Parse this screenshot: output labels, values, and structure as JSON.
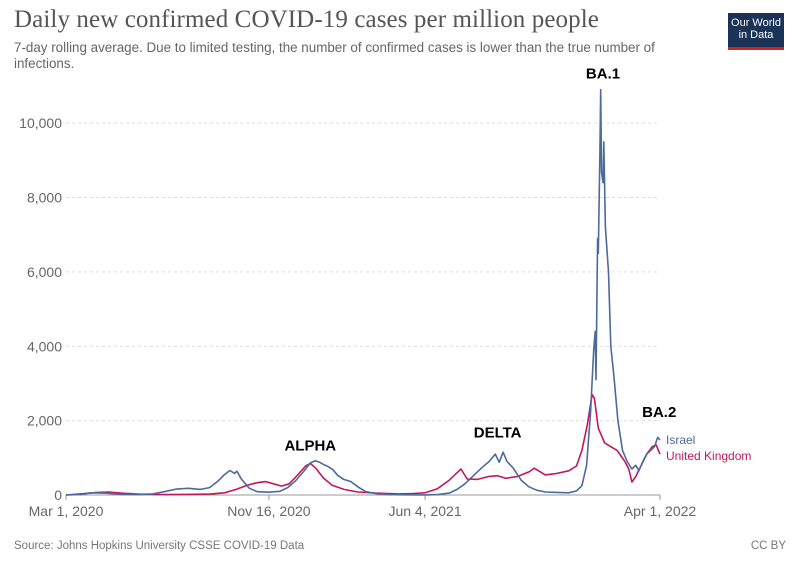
{
  "header": {
    "title": "Daily new confirmed COVID-19 cases per million people",
    "subtitle": "7-day rolling average. Due to limited testing, the number of confirmed cases is lower than the true number of infections."
  },
  "logo": {
    "line1": "Our World",
    "line2": "in Data",
    "bg": "#1a3357",
    "accent": "#ce261e"
  },
  "footer": {
    "source": "Source: Johns Hopkins University CSSE COVID-19 Data",
    "license": "CC BY"
  },
  "chart_data": {
    "type": "line",
    "title": "Daily new confirmed COVID-19 cases per million people",
    "xlabel": "",
    "ylabel": "",
    "xlim": [
      "2020-03-01",
      "2022-04-01"
    ],
    "ylim": [
      0,
      11000
    ],
    "grid": "horizontal dashed",
    "legend": "inline labels at line ends (right)",
    "x_ticks": [
      "Mar 1, 2020",
      "Nov 16, 2020",
      "Jun 4, 2021",
      "Apr 1, 2022"
    ],
    "y_ticks": [
      {
        "value": 0,
        "label": "0"
      },
      {
        "value": 2000,
        "label": "2,000"
      },
      {
        "value": 4000,
        "label": "4,000"
      },
      {
        "value": 6000,
        "label": "6,000"
      },
      {
        "value": 8000,
        "label": "8,000"
      },
      {
        "value": 10000,
        "label": "10,000"
      }
    ],
    "annotations": [
      {
        "text": "ALPHA",
        "x": "2021-01-08",
        "y": 1200
      },
      {
        "text": "DELTA",
        "x": "2021-09-05",
        "y": 1550
      },
      {
        "text": "BA.1",
        "x": "2022-01-18",
        "y": 11200
      },
      {
        "text": "BA.2",
        "x": "2022-03-31",
        "y": 2100
      }
    ],
    "series": [
      {
        "name": "Israel",
        "color": "#4c6a9c",
        "points": [
          [
            "2020-03-01",
            0
          ],
          [
            "2020-03-20",
            15
          ],
          [
            "2020-04-02",
            60
          ],
          [
            "2020-04-20",
            50
          ],
          [
            "2020-05-10",
            20
          ],
          [
            "2020-06-01",
            10
          ],
          [
            "2020-06-20",
            30
          ],
          [
            "2020-07-05",
            90
          ],
          [
            "2020-07-20",
            160
          ],
          [
            "2020-08-05",
            180
          ],
          [
            "2020-08-20",
            150
          ],
          [
            "2020-09-01",
            200
          ],
          [
            "2020-09-12",
            380
          ],
          [
            "2020-09-20",
            550
          ],
          [
            "2020-09-27",
            660
          ],
          [
            "2020-10-03",
            580
          ],
          [
            "2020-10-06",
            640
          ],
          [
            "2020-10-12",
            420
          ],
          [
            "2020-10-22",
            180
          ],
          [
            "2020-11-01",
            90
          ],
          [
            "2020-11-16",
            75
          ],
          [
            "2020-11-30",
            100
          ],
          [
            "2020-12-10",
            200
          ],
          [
            "2020-12-20",
            380
          ],
          [
            "2020-12-30",
            620
          ],
          [
            "2021-01-08",
            860
          ],
          [
            "2021-01-14",
            920
          ],
          [
            "2021-01-20",
            880
          ],
          [
            "2021-01-26",
            810
          ],
          [
            "2021-01-31",
            760
          ],
          [
            "2021-02-06",
            680
          ],
          [
            "2021-02-12",
            530
          ],
          [
            "2021-02-20",
            420
          ],
          [
            "2021-03-01",
            360
          ],
          [
            "2021-03-10",
            220
          ],
          [
            "2021-03-20",
            90
          ],
          [
            "2021-04-05",
            30
          ],
          [
            "2021-04-20",
            12
          ],
          [
            "2021-05-10",
            6
          ],
          [
            "2021-06-04",
            3
          ],
          [
            "2021-06-20",
            10
          ],
          [
            "2021-07-05",
            50
          ],
          [
            "2021-07-15",
            150
          ],
          [
            "2021-07-25",
            300
          ],
          [
            "2021-08-05",
            520
          ],
          [
            "2021-08-15",
            720
          ],
          [
            "2021-08-25",
            900
          ],
          [
            "2021-09-02",
            1100
          ],
          [
            "2021-09-07",
            880
          ],
          [
            "2021-09-12",
            1150
          ],
          [
            "2021-09-17",
            900
          ],
          [
            "2021-09-25",
            720
          ],
          [
            "2021-10-05",
            400
          ],
          [
            "2021-10-15",
            220
          ],
          [
            "2021-10-25",
            130
          ],
          [
            "2021-11-05",
            80
          ],
          [
            "2021-11-20",
            70
          ],
          [
            "2021-12-05",
            60
          ],
          [
            "2021-12-15",
            110
          ],
          [
            "2021-12-22",
            250
          ],
          [
            "2021-12-28",
            800
          ],
          [
            "2022-01-02",
            2200
          ],
          [
            "2022-01-06",
            3900
          ],
          [
            "2022-01-08",
            4400
          ],
          [
            "2022-01-09",
            3100
          ],
          [
            "2022-01-11",
            6900
          ],
          [
            "2022-01-12",
            6500
          ],
          [
            "2022-01-14",
            9200
          ],
          [
            "2022-01-15",
            10900
          ],
          [
            "2022-01-16",
            8700
          ],
          [
            "2022-01-18",
            8400
          ],
          [
            "2022-01-19",
            9500
          ],
          [
            "2022-01-21",
            7200
          ],
          [
            "2022-01-25",
            6000
          ],
          [
            "2022-01-28",
            4000
          ],
          [
            "2022-02-01",
            3200
          ],
          [
            "2022-02-06",
            2000
          ],
          [
            "2022-02-12",
            1200
          ],
          [
            "2022-02-18",
            900
          ],
          [
            "2022-02-24",
            700
          ],
          [
            "2022-03-01",
            800
          ],
          [
            "2022-03-05",
            650
          ],
          [
            "2022-03-10",
            900
          ],
          [
            "2022-03-15",
            1100
          ],
          [
            "2022-03-20",
            1200
          ],
          [
            "2022-03-25",
            1300
          ],
          [
            "2022-03-29",
            1550
          ],
          [
            "2022-04-01",
            1480
          ]
        ]
      },
      {
        "name": "United Kingdom",
        "color": "#c2185b",
        "points": [
          [
            "2020-03-01",
            0
          ],
          [
            "2020-03-25",
            40
          ],
          [
            "2020-04-10",
            70
          ],
          [
            "2020-04-25",
            80
          ],
          [
            "2020-05-10",
            50
          ],
          [
            "2020-06-01",
            25
          ],
          [
            "2020-07-01",
            10
          ],
          [
            "2020-08-01",
            15
          ],
          [
            "2020-09-01",
            25
          ],
          [
            "2020-09-20",
            60
          ],
          [
            "2020-10-05",
            150
          ],
          [
            "2020-10-20",
            270
          ],
          [
            "2020-11-01",
            330
          ],
          [
            "2020-11-12",
            360
          ],
          [
            "2020-11-22",
            300
          ],
          [
            "2020-12-02",
            240
          ],
          [
            "2020-12-12",
            300
          ],
          [
            "2020-12-22",
            520
          ],
          [
            "2021-01-02",
            780
          ],
          [
            "2021-01-08",
            850
          ],
          [
            "2021-01-15",
            720
          ],
          [
            "2021-01-25",
            450
          ],
          [
            "2021-02-05",
            260
          ],
          [
            "2021-02-20",
            150
          ],
          [
            "2021-03-10",
            80
          ],
          [
            "2021-04-01",
            50
          ],
          [
            "2021-05-01",
            30
          ],
          [
            "2021-05-20",
            40
          ],
          [
            "2021-06-04",
            60
          ],
          [
            "2021-06-20",
            170
          ],
          [
            "2021-07-05",
            400
          ],
          [
            "2021-07-15",
            600
          ],
          [
            "2021-07-20",
            700
          ],
          [
            "2021-07-28",
            430
          ],
          [
            "2021-08-10",
            420
          ],
          [
            "2021-08-25",
            500
          ],
          [
            "2021-09-05",
            520
          ],
          [
            "2021-09-15",
            450
          ],
          [
            "2021-10-01",
            500
          ],
          [
            "2021-10-15",
            620
          ],
          [
            "2021-10-22",
            720
          ],
          [
            "2021-11-05",
            540
          ],
          [
            "2021-11-20",
            580
          ],
          [
            "2021-12-05",
            650
          ],
          [
            "2021-12-15",
            780
          ],
          [
            "2021-12-22",
            1200
          ],
          [
            "2021-12-29",
            1900
          ],
          [
            "2022-01-04",
            2700
          ],
          [
            "2022-01-07",
            2600
          ],
          [
            "2022-01-12",
            1800
          ],
          [
            "2022-01-20",
            1400
          ],
          [
            "2022-01-28",
            1300
          ],
          [
            "2022-02-05",
            1200
          ],
          [
            "2022-02-10",
            1050
          ],
          [
            "2022-02-15",
            900
          ],
          [
            "2022-02-20",
            700
          ],
          [
            "2022-02-24",
            350
          ],
          [
            "2022-03-01",
            500
          ],
          [
            "2022-03-08",
            800
          ],
          [
            "2022-03-15",
            1100
          ],
          [
            "2022-03-22",
            1300
          ],
          [
            "2022-03-27",
            1350
          ],
          [
            "2022-04-01",
            1100
          ]
        ]
      }
    ]
  }
}
